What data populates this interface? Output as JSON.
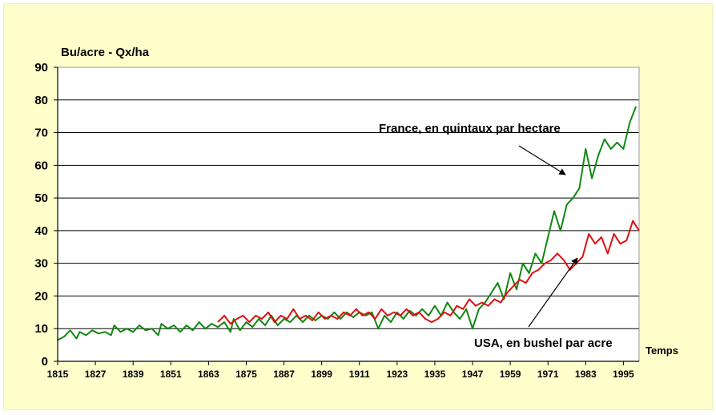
{
  "chart_data": {
    "type": "line",
    "title": "",
    "ylabel": "Bu/acre - Qx/ha",
    "xlabel": "Temps",
    "ylim": [
      0,
      90
    ],
    "xlim": [
      1815,
      2000
    ],
    "yticks": [
      0,
      10,
      20,
      30,
      40,
      50,
      60,
      70,
      80,
      90
    ],
    "xticks": [
      1815,
      1827,
      1839,
      1851,
      1863,
      1875,
      1887,
      1899,
      1911,
      1923,
      1935,
      1947,
      1959,
      1971,
      1983,
      1995
    ],
    "grid": "horizontal",
    "annotations": [
      {
        "id": "france",
        "text": "France, en quintaux par hectare"
      },
      {
        "id": "usa",
        "text": "USA, en bushel par acre"
      }
    ],
    "series": [
      {
        "name": "France, en quintaux par hectare",
        "color": "#118811",
        "x": [
          1815,
          1817,
          1819,
          1821,
          1822,
          1824,
          1826,
          1828,
          1830,
          1832,
          1833,
          1835,
          1837,
          1839,
          1841,
          1843,
          1845,
          1847,
          1848,
          1850,
          1852,
          1854,
          1856,
          1858,
          1860,
          1862,
          1864,
          1866,
          1868,
          1870,
          1871,
          1873,
          1875,
          1877,
          1879,
          1881,
          1883,
          1885,
          1887,
          1889,
          1891,
          1893,
          1895,
          1897,
          1899,
          1901,
          1903,
          1905,
          1907,
          1909,
          1911,
          1913,
          1915,
          1917,
          1919,
          1921,
          1923,
          1925,
          1927,
          1929,
          1931,
          1933,
          1935,
          1937,
          1939,
          1941,
          1943,
          1945,
          1947,
          1949,
          1951,
          1953,
          1955,
          1957,
          1959,
          1961,
          1963,
          1965,
          1967,
          1969,
          1971,
          1973,
          1975,
          1977,
          1979,
          1981,
          1983,
          1985,
          1987,
          1989,
          1991,
          1993,
          1995,
          1997,
          1999
        ],
        "values": [
          6.5,
          7.5,
          9.5,
          7,
          9,
          8,
          9.5,
          8.5,
          9,
          8,
          11,
          9,
          10,
          9,
          11,
          9.5,
          10,
          8,
          11.5,
          10,
          11,
          9,
          11,
          9.5,
          12,
          10,
          11.5,
          10.5,
          12,
          9,
          13,
          9.5,
          12,
          10.5,
          13,
          11,
          14,
          11,
          13,
          12,
          14,
          12,
          14,
          12.5,
          14,
          13,
          15,
          13,
          15,
          13.5,
          15,
          14,
          15,
          10,
          14,
          12,
          15,
          13,
          15.5,
          14,
          16,
          14,
          17,
          14,
          18,
          15,
          13,
          16,
          10,
          16,
          18,
          21,
          24,
          19,
          27,
          22,
          30,
          27,
          33,
          30,
          38,
          46,
          40,
          48,
          50,
          53,
          65,
          56,
          63,
          68,
          65,
          67,
          65,
          73,
          78
        ]
      },
      {
        "name": "USA, en bushel par acre",
        "color": "#dd1111",
        "x": [
          1866,
          1868,
          1870,
          1872,
          1874,
          1876,
          1878,
          1880,
          1882,
          1884,
          1886,
          1888,
          1890,
          1892,
          1894,
          1896,
          1898,
          1900,
          1902,
          1904,
          1906,
          1908,
          1910,
          1912,
          1914,
          1916,
          1918,
          1920,
          1922,
          1924,
          1926,
          1928,
          1930,
          1932,
          1934,
          1936,
          1938,
          1940,
          1942,
          1944,
          1946,
          1948,
          1950,
          1952,
          1954,
          1956,
          1958,
          1960,
          1962,
          1964,
          1966,
          1968,
          1970,
          1972,
          1974,
          1976,
          1978,
          1980,
          1982,
          1984,
          1986,
          1988,
          1990,
          1992,
          1994,
          1996,
          1998,
          2000
        ],
        "values": [
          12,
          14,
          11.5,
          13,
          14,
          12,
          14,
          13,
          15,
          12,
          14,
          13,
          16,
          13,
          14,
          12.5,
          15,
          13,
          14,
          13,
          15,
          14,
          16,
          14,
          15,
          13,
          16,
          14,
          15,
          14,
          16,
          14,
          15,
          13,
          12,
          13,
          15,
          14,
          17,
          16,
          19,
          17,
          18,
          17,
          19,
          18,
          21,
          23,
          25,
          24,
          27,
          28,
          30,
          31,
          33,
          31,
          28,
          30,
          32,
          39,
          36,
          38,
          33,
          39,
          36,
          37,
          43,
          40
        ]
      }
    ]
  }
}
